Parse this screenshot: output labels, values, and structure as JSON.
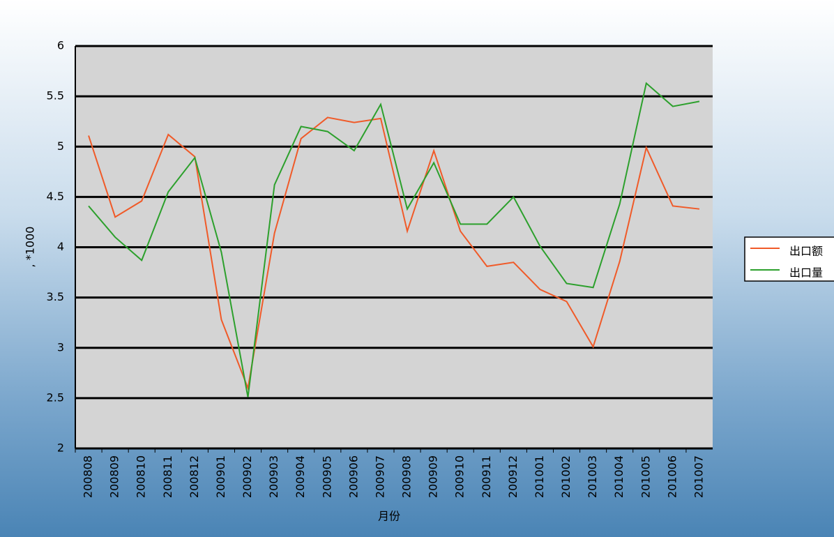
{
  "chart_data": {
    "type": "line",
    "x_label": "月份",
    "y_label": ", *1000",
    "categories": [
      "200808",
      "200809",
      "200810",
      "200811",
      "200812",
      "200901",
      "200902",
      "200903",
      "200904",
      "200905",
      "200906",
      "200907",
      "200908",
      "200909",
      "200910",
      "200911",
      "200912",
      "201001",
      "201002",
      "201003",
      "201004",
      "201005",
      "201006",
      "201007"
    ],
    "series": [
      {
        "name": "出口额",
        "color": "#f05a28",
        "values": [
          5.11,
          4.3,
          4.46,
          5.12,
          4.9,
          3.28,
          2.6,
          4.14,
          5.08,
          5.29,
          5.24,
          5.28,
          4.16,
          4.96,
          4.16,
          3.81,
          3.85,
          3.58,
          3.46,
          3.01,
          3.86,
          4.99,
          4.41,
          4.38
        ]
      },
      {
        "name": "出口量",
        "color": "#2ca02c",
        "values": [
          4.41,
          4.1,
          3.87,
          4.55,
          4.89,
          3.95,
          2.51,
          4.62,
          5.2,
          5.15,
          4.96,
          5.42,
          4.38,
          4.84,
          4.23,
          4.23,
          4.5,
          4.01,
          3.64,
          3.6,
          4.43,
          5.63,
          5.4,
          5.45
        ]
      }
    ],
    "ylim": [
      2,
      6
    ],
    "yticks": [
      2,
      2.5,
      3,
      3.5,
      4,
      4.5,
      5,
      5.5,
      6
    ],
    "grid": true,
    "legend": "right"
  }
}
